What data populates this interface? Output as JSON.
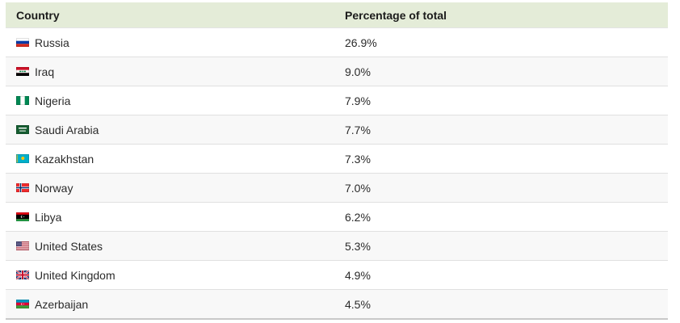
{
  "table": {
    "columns": [
      {
        "label": "Country"
      },
      {
        "label": "Percentage of total"
      }
    ],
    "rows": [
      {
        "country": "Russia",
        "flag": "russia",
        "percentage": "26.9%"
      },
      {
        "country": "Iraq",
        "flag": "iraq",
        "percentage": "9.0%"
      },
      {
        "country": "Nigeria",
        "flag": "nigeria",
        "percentage": "7.9%"
      },
      {
        "country": "Saudi Arabia",
        "flag": "saudi-arabia",
        "percentage": "7.7%"
      },
      {
        "country": "Kazakhstan",
        "flag": "kazakhstan",
        "percentage": "7.3%"
      },
      {
        "country": "Norway",
        "flag": "norway",
        "percentage": "7.0%"
      },
      {
        "country": "Libya",
        "flag": "libya",
        "percentage": "6.2%"
      },
      {
        "country": "United States",
        "flag": "united-states",
        "percentage": "5.3%"
      },
      {
        "country": "United Kingdom",
        "flag": "united-kingdom",
        "percentage": "4.9%"
      },
      {
        "country": "Azerbaijan",
        "flag": "azerbaijan",
        "percentage": "4.5%"
      }
    ]
  },
  "chart_data": {
    "type": "table",
    "title": "",
    "columns": [
      "Country",
      "Percentage of total"
    ],
    "categories": [
      "Russia",
      "Iraq",
      "Nigeria",
      "Saudi Arabia",
      "Kazakhstan",
      "Norway",
      "Libya",
      "United States",
      "United Kingdom",
      "Azerbaijan"
    ],
    "values": [
      26.9,
      9.0,
      7.9,
      7.7,
      7.3,
      7.0,
      6.2,
      5.3,
      4.9,
      4.5
    ],
    "value_unit": "%"
  },
  "colors": {
    "header_bg": "#e4ecd8",
    "row_alt_bg": "#f8f8f8",
    "row_border": "#e0e0e0",
    "bottom_border": "#c9c9c9",
    "text": "#2b2b2b"
  }
}
